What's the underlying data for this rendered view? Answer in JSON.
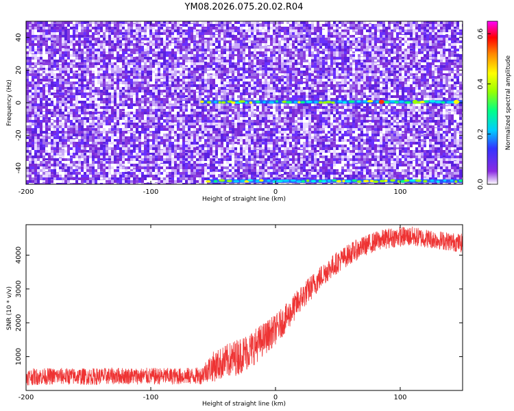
{
  "title": "YM08.2026.075.20.02.R04",
  "chart_data": [
    {
      "type": "heatmap",
      "xlabel": "Height of straight line (km)",
      "ylabel": "Frequency (Hz)",
      "xlim": [
        -200,
        150
      ],
      "ylim": [
        -50,
        50
      ],
      "xticks": [
        -200,
        -100,
        0,
        100
      ],
      "yticks": [
        -40,
        -20,
        0,
        20,
        40
      ],
      "colorbar": {
        "label": "Normalized spectral amplitude",
        "range": [
          0,
          0.65
        ],
        "ticks": [
          0.0,
          0.2,
          0.4,
          0.6
        ],
        "colors": [
          "#ffffff",
          "#8a2be2",
          "#3333ff",
          "#00ccff",
          "#00ff88",
          "#99ff00",
          "#ffff00",
          "#ff8800",
          "#ff0000",
          "#ff00ff"
        ]
      },
      "features": [
        {
          "name": "carrier line",
          "x_start": -60,
          "x_end": 150,
          "frequency_hz": 0.5
        },
        {
          "name": "lower edge line",
          "x_start": -55,
          "x_end": 150,
          "frequency_hz": -48
        }
      ]
    },
    {
      "type": "line",
      "xlabel": "Height of straight line (km)",
      "ylabel": "SNR (10 * v/v)",
      "xlim": [
        -200,
        150
      ],
      "ylim": [
        0,
        4900
      ],
      "xticks": [
        -200,
        -100,
        0,
        100
      ],
      "yticks": [
        1000,
        2000,
        3000,
        4000
      ],
      "series": [
        {
          "name": "SNR",
          "color": "#ee3333",
          "x": [
            -200,
            -175,
            -150,
            -125,
            -100,
            -80,
            -60,
            -55,
            -50,
            -40,
            -30,
            -20,
            -10,
            0,
            10,
            20,
            30,
            40,
            50,
            60,
            70,
            80,
            90,
            100,
            110,
            120,
            130,
            140,
            150
          ],
          "y": [
            400,
            420,
            410,
            430,
            420,
            420,
            430,
            600,
            700,
            850,
            1000,
            1200,
            1500,
            1800,
            2200,
            2700,
            3100,
            3500,
            3800,
            4050,
            4250,
            4400,
            4500,
            4550,
            4550,
            4500,
            4450,
            4400,
            4350
          ],
          "noise_amplitude": [
            250,
            250,
            250,
            250,
            250,
            250,
            250,
            350,
            450,
            500,
            550,
            550,
            500,
            450,
            420,
            400,
            370,
            350,
            330,
            320,
            300,
            300,
            300,
            300,
            300,
            280,
            280,
            280,
            280
          ]
        }
      ]
    }
  ]
}
